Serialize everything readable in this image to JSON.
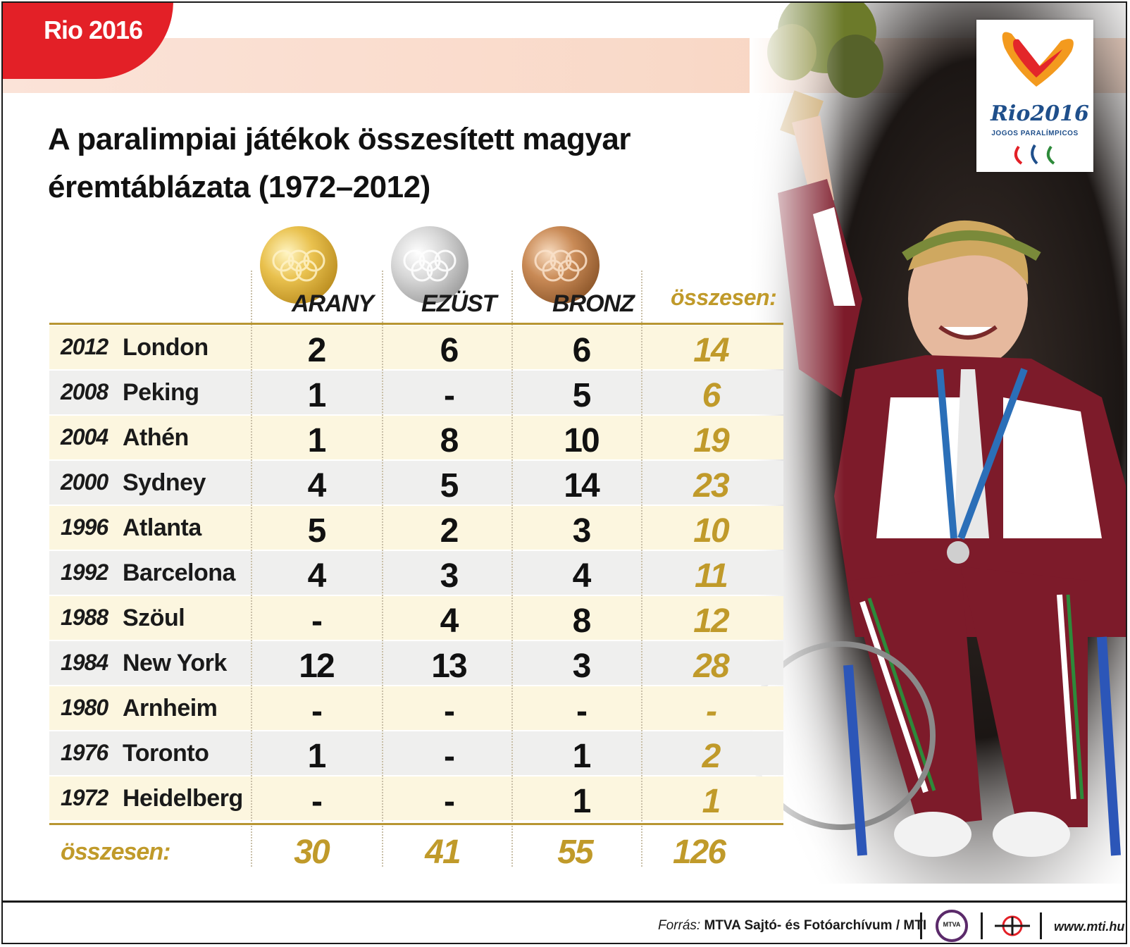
{
  "tag": "Rio 2016",
  "title_line1": "A paralimpiai játékok összesített magyar",
  "title_line2": "éremtáblázata (1972–2012)",
  "logo": {
    "word": "Rio2016",
    "sub": "JOGOS PARALÍMPICOS"
  },
  "columns": {
    "gold": "ARANY",
    "silver": "EZÜST",
    "bronze": "BRONZ",
    "total": "összesen:"
  },
  "rows": [
    {
      "year": "2012",
      "city": "London",
      "gold": "2",
      "silver": "6",
      "bronze": "6",
      "total": "14"
    },
    {
      "year": "2008",
      "city": "Peking",
      "gold": "1",
      "silver": "-",
      "bronze": "5",
      "total": "6"
    },
    {
      "year": "2004",
      "city": "Athén",
      "gold": "1",
      "silver": "8",
      "bronze": "10",
      "total": "19"
    },
    {
      "year": "2000",
      "city": "Sydney",
      "gold": "4",
      "silver": "5",
      "bronze": "14",
      "total": "23"
    },
    {
      "year": "1996",
      "city": "Atlanta",
      "gold": "5",
      "silver": "2",
      "bronze": "3",
      "total": "10"
    },
    {
      "year": "1992",
      "city": "Barcelona",
      "gold": "4",
      "silver": "3",
      "bronze": "4",
      "total": "11"
    },
    {
      "year": "1988",
      "city": "Szöul",
      "gold": "-",
      "silver": "4",
      "bronze": "8",
      "total": "12"
    },
    {
      "year": "1984",
      "city": "New York",
      "gold": "12",
      "silver": "13",
      "bronze": "3",
      "total": "28"
    },
    {
      "year": "1980",
      "city": "Arnheim",
      "gold": "-",
      "silver": "-",
      "bronze": "-",
      "total": "-"
    },
    {
      "year": "1976",
      "city": "Toronto",
      "gold": "1",
      "silver": "-",
      "bronze": "1",
      "total": "2"
    },
    {
      "year": "1972",
      "city": "Heidelberg",
      "gold": "-",
      "silver": "-",
      "bronze": "1",
      "total": "1"
    }
  ],
  "summary": {
    "label": "összesen:",
    "gold": "30",
    "silver": "41",
    "bronze": "55",
    "total": "126"
  },
  "footer": {
    "source_label": "Forrás:",
    "source_text": "MTVA Sajtó- és Fotóarchívum / MTI",
    "mtva_logo_text": "MTVA",
    "url": "www.mti.hu"
  },
  "colors": {
    "accent_red": "#e32027",
    "gold_text": "#c09a2a",
    "gold_rule": "#b89632",
    "row_cream": "#fcf6df",
    "row_grey": "#efefee"
  },
  "icons": {
    "gold_medal": "gold-medal-icon",
    "silver_medal": "silver-medal-icon",
    "bronze_medal": "bronze-medal-icon"
  }
}
